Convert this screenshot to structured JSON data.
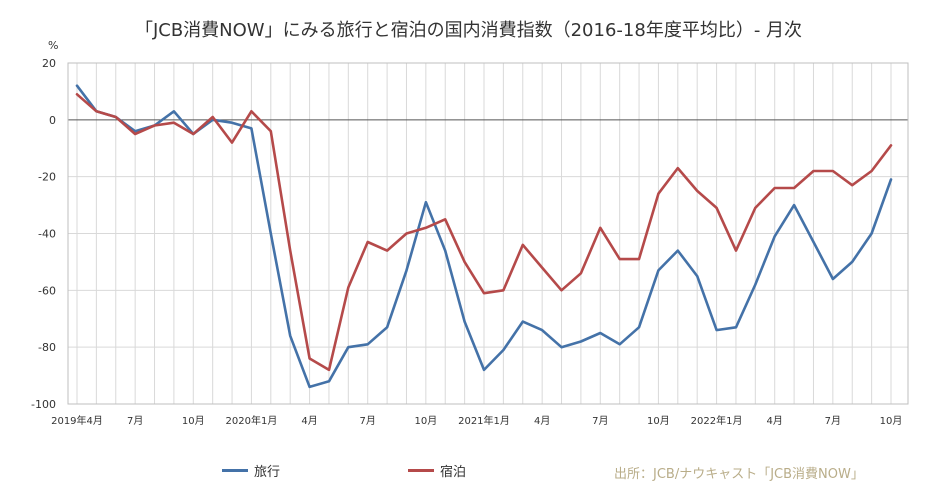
{
  "chart_data": {
    "type": "line",
    "title": "「JCB消費NOW」にみる旅行と宿泊の国内消費指数（2016-18年度平均比）- 月次",
    "unit_label": "%",
    "ylim": [
      -100,
      20
    ],
    "yticks": [
      20,
      0,
      -20,
      -40,
      -60,
      -80,
      -100
    ],
    "grid": true,
    "x_points": 43,
    "x_tick_labels": [
      {
        "i": 0,
        "label": "2019年4月"
      },
      {
        "i": 3,
        "label": "7月"
      },
      {
        "i": 6,
        "label": "10月"
      },
      {
        "i": 9,
        "label": "2020年1月"
      },
      {
        "i": 12,
        "label": "4月"
      },
      {
        "i": 15,
        "label": "7月"
      },
      {
        "i": 18,
        "label": "10月"
      },
      {
        "i": 21,
        "label": "2021年1月"
      },
      {
        "i": 24,
        "label": "4月"
      },
      {
        "i": 27,
        "label": "7月"
      },
      {
        "i": 30,
        "label": "10月"
      },
      {
        "i": 33,
        "label": "2022年1月"
      },
      {
        "i": 36,
        "label": "4月"
      },
      {
        "i": 39,
        "label": "7月"
      },
      {
        "i": 42,
        "label": "10月"
      }
    ],
    "series": [
      {
        "name": "旅行",
        "color": "#4472a8",
        "values": [
          12,
          3,
          1,
          -4,
          -2,
          3,
          -5,
          0,
          -1,
          -3,
          -40,
          -76,
          -94,
          -92,
          -80,
          -79,
          -73,
          -53,
          -29,
          -46,
          -71,
          -88,
          -81,
          -71,
          -74,
          -80,
          -78,
          -75,
          -79,
          -73,
          -53,
          -46,
          -55,
          -74,
          -73,
          -58,
          -41,
          -30,
          -43,
          -56,
          -50,
          -40,
          -21
        ]
      },
      {
        "name": "宿泊",
        "color": "#b54a4a",
        "values": [
          9,
          3,
          1,
          -5,
          -2,
          -1,
          -5,
          1,
          -8,
          3,
          -4,
          -46,
          -84,
          -88,
          -59,
          -43,
          -46,
          -40,
          -38,
          -35,
          -50,
          -61,
          -60,
          -44,
          -52,
          -60,
          -54,
          -38,
          -49,
          -49,
          -26,
          -17,
          -25,
          -31,
          -46,
          -31,
          -24,
          -24,
          -18,
          -18,
          -23,
          -18,
          -9
        ]
      }
    ],
    "legend_position": "bottom-left",
    "source_note": "出所：JCB/ナウキャスト「JCB消費NOW」"
  }
}
